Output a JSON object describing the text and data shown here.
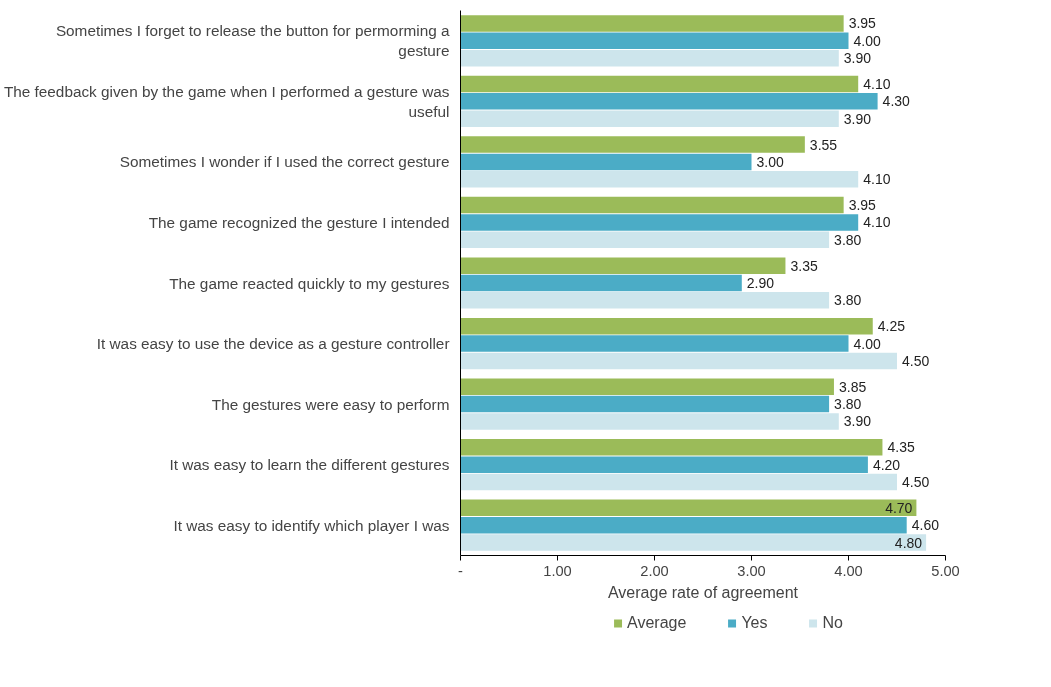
{
  "chart_data": {
    "type": "bar",
    "orientation": "horizontal",
    "xlabel": "Average rate of agreement",
    "categories": [
      "Sometimes I forget to release the button for permorming a gesture",
      "The feedback given by the game when I performed a gesture was useful",
      "Sometimes I wonder if I used the correct gesture",
      "The game recognized the gesture I intended",
      "The game reacted quickly to my gestures",
      "It was easy to use the device as a gesture controller",
      "The gestures were easy to perform",
      "It was easy to learn the different gestures",
      "It was easy to identify which player I was"
    ],
    "series": [
      {
        "name": "Average",
        "color": "#9bbb59",
        "values": [
          3.95,
          4.1,
          3.55,
          3.95,
          3.35,
          4.25,
          3.85,
          4.35,
          4.7
        ],
        "value_labels": [
          "3.95",
          "4.10",
          "3.55",
          "3.95",
          "3.35",
          "4.25",
          "3.85",
          "4.35",
          "4.70"
        ]
      },
      {
        "name": "Yes",
        "color": "#4bacc6",
        "values": [
          4.0,
          4.3,
          3.0,
          4.1,
          2.9,
          4.0,
          3.8,
          4.2,
          4.6
        ],
        "value_labels": [
          "4.00",
          "4.30",
          "3.00",
          "4.10",
          "2.90",
          "4.00",
          "3.80",
          "4.20",
          "4.60"
        ]
      },
      {
        "name": "No",
        "color": "#cde5ec",
        "values": [
          3.9,
          3.9,
          4.1,
          3.8,
          3.8,
          4.5,
          3.9,
          4.5,
          4.8
        ],
        "value_labels": [
          "3.90",
          "3.90",
          "4.10",
          "3.80",
          "3.80",
          "4.50",
          "3.90",
          "4.50",
          "4.80"
        ]
      }
    ],
    "xlim": [
      0,
      5
    ],
    "xticks": [
      {
        "value": 0,
        "label": "-"
      },
      {
        "value": 1,
        "label": "1.00"
      },
      {
        "value": 2,
        "label": "2.00"
      },
      {
        "value": 3,
        "label": "3.00"
      },
      {
        "value": 4,
        "label": "4.00"
      },
      {
        "value": 5,
        "label": "5.00"
      }
    ],
    "grid": false,
    "legend": "bottom"
  }
}
